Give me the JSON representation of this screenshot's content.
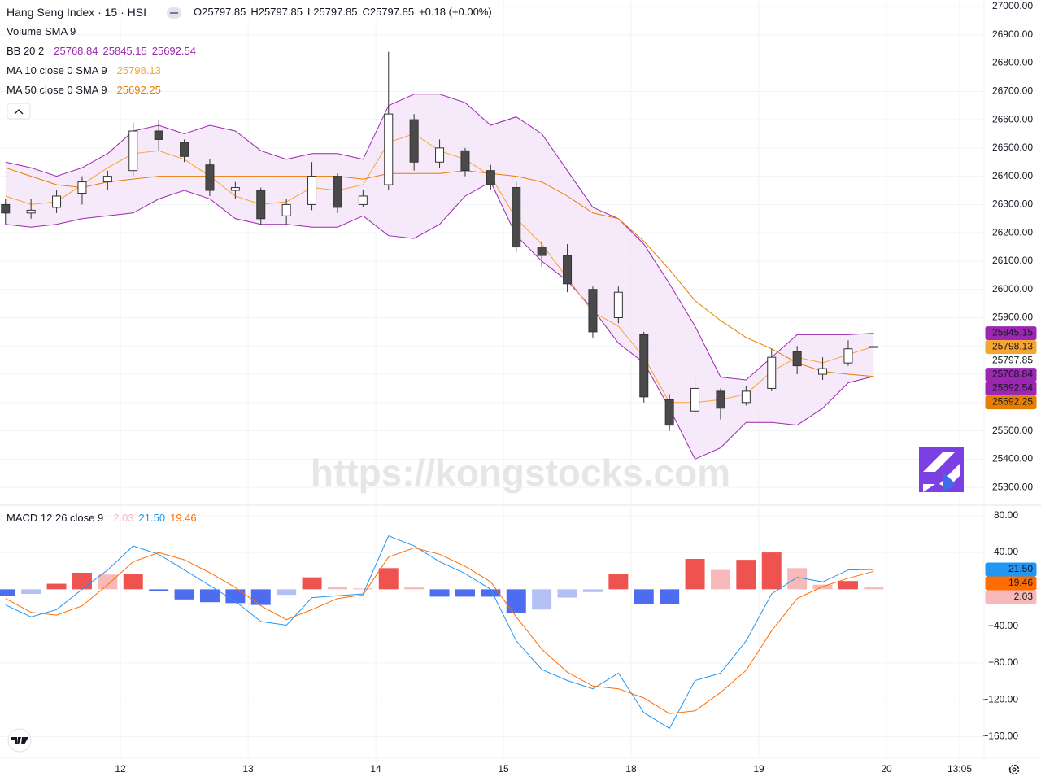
{
  "chart_data": [
    {
      "type": "candlestick",
      "title": "Hang Seng Index · 15 · HSI",
      "ohlc_labels": [
        "O",
        "H",
        "L",
        "C"
      ],
      "change": "+0.18 (+0.00%)",
      "volume_label": "Volume SMA 9",
      "watermark": "https://kongstocks.com",
      "up_color": "#ffffff",
      "down_color": "#4a4a4a",
      "wick_color": "#333333",
      "x": [
        0.1,
        0.3,
        0.5,
        0.7,
        0.9,
        1.1,
        1.3,
        1.5,
        1.7,
        1.9,
        2.1,
        2.3,
        2.5,
        2.7,
        2.9,
        3.1,
        3.3,
        3.5,
        3.7,
        3.9,
        4.1,
        4.3,
        4.5,
        4.7,
        4.9,
        5.1,
        5.3,
        5.5,
        5.7,
        5.9,
        6.1,
        6.3,
        6.5,
        6.7,
        6.9
      ],
      "ohlc": [
        [
          26300,
          26320,
          26230,
          26270
        ],
        [
          26270,
          26320,
          26250,
          26280
        ],
        [
          26290,
          26350,
          26270,
          26330
        ],
        [
          26340,
          26400,
          26300,
          26380
        ],
        [
          26380,
          26420,
          26350,
          26400
        ],
        [
          26420,
          26590,
          26400,
          26560
        ],
        [
          26560,
          26600,
          26490,
          26530
        ],
        [
          26520,
          26530,
          26450,
          26470
        ],
        [
          26440,
          26460,
          26330,
          26350
        ],
        [
          26350,
          26380,
          26320,
          26360
        ],
        [
          26350,
          26360,
          26230,
          26250
        ],
        [
          26260,
          26320,
          26230,
          26300
        ],
        [
          26300,
          26450,
          26280,
          26400
        ],
        [
          26400,
          26410,
          26270,
          26290
        ],
        [
          26300,
          26350,
          26290,
          26330
        ],
        [
          26370,
          26840,
          26350,
          26620
        ],
        [
          26600,
          26620,
          26420,
          26450
        ],
        [
          26450,
          26530,
          26430,
          26500
        ],
        [
          26490,
          26500,
          26400,
          26420
        ],
        [
          26420,
          26440,
          26350,
          26370
        ],
        [
          26360,
          26380,
          26130,
          26150
        ],
        [
          26150,
          26170,
          26080,
          26120
        ],
        [
          26120,
          26160,
          25990,
          26020
        ],
        [
          26000,
          26010,
          25830,
          25850
        ],
        [
          25900,
          26010,
          25880,
          25990
        ],
        [
          25840,
          25850,
          25600,
          25620
        ],
        [
          25610,
          25630,
          25500,
          25520
        ],
        [
          25570,
          25690,
          25550,
          25650
        ],
        [
          25640,
          25650,
          25540,
          25580
        ],
        [
          25600,
          25660,
          25590,
          25640
        ],
        [
          25650,
          25790,
          25640,
          25760
        ],
        [
          25780,
          25800,
          25700,
          25730
        ],
        [
          25700,
          25760,
          25680,
          25720
        ],
        [
          25740,
          25820,
          25730,
          25790
        ],
        [
          25797.85,
          25797.85,
          25797.85,
          25797.85
        ]
      ],
      "bb": {
        "name": "BB 20 2",
        "color": "#9c27b0",
        "fill": "#f3e1f7",
        "basis": 25768.84,
        "upper": [
          26450,
          26430,
          26400,
          26430,
          26480,
          26560,
          26580,
          26550,
          26580,
          26560,
          26490,
          26460,
          26480,
          26480,
          26460,
          26650,
          26690,
          26690,
          26660,
          26580,
          26610,
          26550,
          26420,
          26290,
          26250,
          26160,
          26020,
          25870,
          25690,
          25680,
          25760,
          25840,
          25840,
          25840,
          25845.15
        ],
        "lower": [
          26230,
          26220,
          26230,
          26250,
          26260,
          26270,
          26320,
          26350,
          26320,
          26250,
          26230,
          26230,
          26220,
          26220,
          26260,
          26190,
          26180,
          26230,
          26330,
          26380,
          26190,
          26100,
          26030,
          25930,
          25810,
          25740,
          25580,
          25400,
          25440,
          25530,
          25530,
          25520,
          25580,
          25670,
          25692.54
        ]
      },
      "ma": [
        {
          "name": "MA 10 close 0 SMA 9",
          "color": "#f7a531",
          "values": [
            26330,
            26300,
            26310,
            26370,
            26430,
            26480,
            26490,
            26460,
            26400,
            26330,
            26300,
            26310,
            26360,
            26350,
            26370,
            26520,
            26550,
            26490,
            26460,
            26400,
            26250,
            26160,
            26040,
            25920,
            25870,
            25760,
            25600,
            25600,
            25610,
            25630,
            25710,
            25760,
            25740,
            25770,
            25798.13
          ]
        },
        {
          "name": "MA 50 close 0 SMA 9",
          "color": "#e67e00",
          "values": [
            26430,
            26400,
            26370,
            26360,
            26380,
            26390,
            26400,
            26400,
            26400,
            26400,
            26400,
            26400,
            26400,
            26400,
            26390,
            26410,
            26410,
            26410,
            26420,
            26410,
            26400,
            26380,
            26330,
            26270,
            26250,
            26170,
            26070,
            25960,
            25890,
            25830,
            25790,
            25740,
            25710,
            25700,
            25692.25
          ]
        }
      ],
      "ylim": [
        25240,
        27023
      ],
      "yticks": [
        {
          "value": 25300,
          "label": "25300.00"
        },
        {
          "value": 25400,
          "label": "25400.00"
        },
        {
          "value": 25500,
          "label": "25500.00"
        },
        {
          "value": 25600,
          "label": "25600.00"
        },
        {
          "value": 25700,
          "label": "25700.00"
        },
        {
          "value": 25800,
          "label": "25800.00"
        },
        {
          "value": 25900,
          "label": "25900.00"
        },
        {
          "value": 26000,
          "label": "26000.00"
        },
        {
          "value": 26100,
          "label": "26100.00"
        },
        {
          "value": 26200,
          "label": "26200.00"
        },
        {
          "value": 26300,
          "label": "26300.00"
        },
        {
          "value": 26400,
          "label": "26400.00"
        },
        {
          "value": 26500,
          "label": "26500.00"
        },
        {
          "value": 26600,
          "label": "26600.00"
        },
        {
          "value": 26700,
          "label": "26700.00"
        },
        {
          "value": 26800,
          "label": "26800.00"
        },
        {
          "value": 26900,
          "label": "26900.00"
        },
        {
          "value": 27000,
          "label": "27000.00"
        }
      ],
      "grid": true
    },
    {
      "type": "macd",
      "name": "MACD 12 26 close 9",
      "histogram": {
        "colors": [
          "#ef5350",
          "#f8b9bb",
          "#4e6cf0",
          "#b3c0f4"
        ],
        "values": [
          -7,
          -5,
          6,
          18,
          16,
          17,
          -2,
          -11,
          -14,
          -15,
          -17,
          -6,
          13,
          3,
          1,
          23,
          2,
          -8,
          -8,
          -8,
          -26,
          -22,
          -9,
          -3,
          17,
          -16,
          -16,
          33,
          21,
          32,
          40,
          23,
          5,
          9,
          2.03
        ]
      },
      "macd": {
        "color": "#2196f3",
        "values": [
          -17,
          -30,
          -22,
          0,
          21,
          47,
          38,
          21,
          4,
          -13,
          -35,
          -39,
          -9,
          -7,
          -5,
          58,
          47,
          30,
          17,
          0,
          -56,
          -87,
          -99,
          -108,
          -91,
          -134,
          -151,
          -99,
          -91,
          -56,
          -5,
          13,
          8,
          21,
          21.5
        ],
        "value_labels": [
          null,
          null,
          null,
          null,
          null,
          null,
          null,
          null,
          null,
          null,
          null,
          null,
          null,
          null,
          null,
          null,
          null,
          null,
          null,
          null,
          null,
          null,
          null,
          null,
          null,
          null,
          null,
          null,
          null,
          null,
          null,
          null,
          null,
          null,
          "21.50"
        ]
      },
      "signal": {
        "color": "#ff6d00",
        "values": [
          -10,
          -25,
          -28,
          -18,
          5,
          30,
          40,
          32,
          18,
          2,
          -18,
          -33,
          -22,
          -10,
          -6,
          35,
          45,
          38,
          25,
          8,
          -30,
          -65,
          -90,
          -105,
          -108,
          -118,
          -135,
          -132,
          -112,
          -88,
          -45,
          -10,
          3,
          12,
          19.46
        ]
      },
      "ylim": [
        -181.6,
        90.4
      ],
      "yticks": [
        {
          "value": 80,
          "label": "80.00"
        },
        {
          "value": 40,
          "label": "40.00"
        },
        {
          "value": -40,
          "label": "−40.00"
        },
        {
          "value": -80,
          "label": "−80.00"
        },
        {
          "value": -120,
          "label": "−120.00"
        },
        {
          "value": -160,
          "label": "−160.00"
        }
      ],
      "xlim": [
        0.057,
        7.764
      ],
      "xticks": [
        {
          "value": 1,
          "label": "12"
        },
        {
          "value": 2,
          "label": "13"
        },
        {
          "value": 3,
          "label": "14"
        },
        {
          "value": 4,
          "label": "15"
        },
        {
          "value": 5,
          "label": "18"
        },
        {
          "value": 6,
          "label": "19"
        },
        {
          "value": 7.0,
          "label": "20"
        },
        {
          "value": 7.573,
          "label": "13:05"
        }
      ],
      "grid": true
    }
  ]
}
